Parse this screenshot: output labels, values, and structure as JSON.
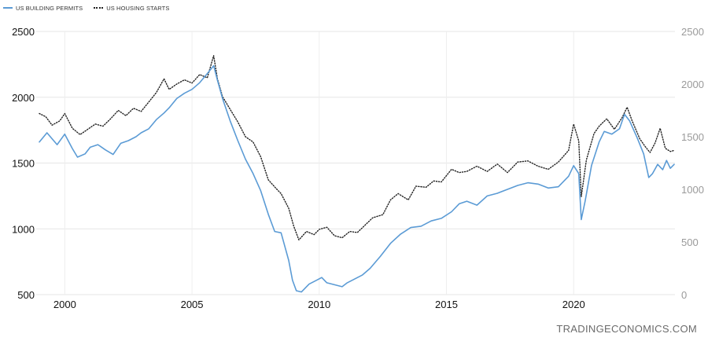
{
  "legend": [
    {
      "name": "US BUILDING PERMITS",
      "style": "solid",
      "color": "#5b9bd5"
    },
    {
      "name": "US HOUSING STARTS",
      "style": "dotted",
      "color": "#222222"
    }
  ],
  "watermark": "TRADINGECONOMICS.COM",
  "chart_data": {
    "type": "line",
    "title": "",
    "xlabel": "",
    "ylabel": "",
    "x_ticks": [
      "2000",
      "2005",
      "2010",
      "2015",
      "2020"
    ],
    "xlim": [
      1999.0,
      2023.95
    ],
    "y_left_ticks": [
      "500",
      "1000",
      "1500",
      "2000",
      "2500"
    ],
    "y_left_lim": [
      500,
      2500
    ],
    "y_right_ticks": [
      "0",
      "500",
      "1000",
      "1500",
      "2000",
      "2500"
    ],
    "y_right_lim": [
      0,
      2500
    ],
    "grid": true,
    "legend_position": "top-left",
    "series": [
      {
        "name": "US BUILDING PERMITS",
        "axis": "left",
        "color": "#5b9bd5",
        "style": "solid",
        "points": [
          [
            1999.0,
            1660
          ],
          [
            1999.3,
            1730
          ],
          [
            1999.7,
            1640
          ],
          [
            2000.0,
            1720
          ],
          [
            2000.3,
            1610
          ],
          [
            2000.5,
            1545
          ],
          [
            2000.8,
            1570
          ],
          [
            2001.0,
            1620
          ],
          [
            2001.3,
            1640
          ],
          [
            2001.6,
            1600
          ],
          [
            2001.9,
            1565
          ],
          [
            2002.2,
            1650
          ],
          [
            2002.5,
            1670
          ],
          [
            2002.8,
            1700
          ],
          [
            2003.0,
            1730
          ],
          [
            2003.3,
            1760
          ],
          [
            2003.6,
            1830
          ],
          [
            2003.9,
            1880
          ],
          [
            2004.1,
            1920
          ],
          [
            2004.4,
            1990
          ],
          [
            2004.7,
            2030
          ],
          [
            2005.0,
            2060
          ],
          [
            2005.3,
            2110
          ],
          [
            2005.6,
            2180
          ],
          [
            2005.85,
            2240
          ],
          [
            2006.0,
            2130
          ],
          [
            2006.2,
            1990
          ],
          [
            2006.5,
            1820
          ],
          [
            2006.8,
            1670
          ],
          [
            2007.1,
            1530
          ],
          [
            2007.4,
            1420
          ],
          [
            2007.7,
            1290
          ],
          [
            2008.0,
            1110
          ],
          [
            2008.25,
            980
          ],
          [
            2008.5,
            970
          ],
          [
            2008.8,
            760
          ],
          [
            2008.95,
            610
          ],
          [
            2009.1,
            530
          ],
          [
            2009.3,
            520
          ],
          [
            2009.6,
            580
          ],
          [
            2009.9,
            610
          ],
          [
            2010.1,
            630
          ],
          [
            2010.3,
            590
          ],
          [
            2010.6,
            575
          ],
          [
            2010.9,
            560
          ],
          [
            2011.1,
            590
          ],
          [
            2011.4,
            620
          ],
          [
            2011.7,
            650
          ],
          [
            2012.0,
            700
          ],
          [
            2012.4,
            790
          ],
          [
            2012.8,
            890
          ],
          [
            2013.2,
            960
          ],
          [
            2013.6,
            1010
          ],
          [
            2014.0,
            1020
          ],
          [
            2014.4,
            1060
          ],
          [
            2014.8,
            1080
          ],
          [
            2015.2,
            1130
          ],
          [
            2015.5,
            1190
          ],
          [
            2015.8,
            1210
          ],
          [
            2016.2,
            1180
          ],
          [
            2016.6,
            1250
          ],
          [
            2017.0,
            1270
          ],
          [
            2017.4,
            1300
          ],
          [
            2017.8,
            1330
          ],
          [
            2018.2,
            1350
          ],
          [
            2018.6,
            1340
          ],
          [
            2019.0,
            1310
          ],
          [
            2019.4,
            1320
          ],
          [
            2019.8,
            1400
          ],
          [
            2020.0,
            1480
          ],
          [
            2020.2,
            1420
          ],
          [
            2020.3,
            1070
          ],
          [
            2020.45,
            1210
          ],
          [
            2020.7,
            1480
          ],
          [
            2021.0,
            1660
          ],
          [
            2021.2,
            1740
          ],
          [
            2021.5,
            1720
          ],
          [
            2021.8,
            1760
          ],
          [
            2022.0,
            1870
          ],
          [
            2022.2,
            1820
          ],
          [
            2022.5,
            1690
          ],
          [
            2022.75,
            1570
          ],
          [
            2022.95,
            1390
          ],
          [
            2023.1,
            1420
          ],
          [
            2023.3,
            1490
          ],
          [
            2023.5,
            1450
          ],
          [
            2023.65,
            1520
          ],
          [
            2023.8,
            1460
          ],
          [
            2023.95,
            1490
          ]
        ]
      },
      {
        "name": "US HOUSING STARTS",
        "axis": "right",
        "color": "#222222",
        "style": "dotted",
        "points": [
          [
            1999.0,
            1720
          ],
          [
            1999.25,
            1690
          ],
          [
            1999.5,
            1610
          ],
          [
            1999.8,
            1650
          ],
          [
            2000.0,
            1720
          ],
          [
            2000.3,
            1580
          ],
          [
            2000.6,
            1520
          ],
          [
            2000.9,
            1570
          ],
          [
            2001.2,
            1620
          ],
          [
            2001.5,
            1600
          ],
          [
            2001.8,
            1670
          ],
          [
            2002.1,
            1750
          ],
          [
            2002.4,
            1700
          ],
          [
            2002.7,
            1770
          ],
          [
            2003.0,
            1740
          ],
          [
            2003.3,
            1830
          ],
          [
            2003.6,
            1920
          ],
          [
            2003.9,
            2050
          ],
          [
            2004.1,
            1950
          ],
          [
            2004.4,
            2000
          ],
          [
            2004.7,
            2040
          ],
          [
            2005.0,
            2010
          ],
          [
            2005.3,
            2090
          ],
          [
            2005.6,
            2060
          ],
          [
            2005.85,
            2270
          ],
          [
            2006.0,
            2050
          ],
          [
            2006.2,
            1880
          ],
          [
            2006.5,
            1760
          ],
          [
            2006.8,
            1640
          ],
          [
            2007.1,
            1500
          ],
          [
            2007.4,
            1450
          ],
          [
            2007.7,
            1310
          ],
          [
            2008.0,
            1090
          ],
          [
            2008.3,
            1010
          ],
          [
            2008.5,
            960
          ],
          [
            2008.8,
            820
          ],
          [
            2009.0,
            650
          ],
          [
            2009.2,
            520
          ],
          [
            2009.5,
            600
          ],
          [
            2009.8,
            570
          ],
          [
            2010.0,
            620
          ],
          [
            2010.3,
            640
          ],
          [
            2010.6,
            560
          ],
          [
            2010.9,
            540
          ],
          [
            2011.2,
            600
          ],
          [
            2011.5,
            590
          ],
          [
            2011.8,
            660
          ],
          [
            2012.1,
            730
          ],
          [
            2012.5,
            760
          ],
          [
            2012.8,
            900
          ],
          [
            2013.1,
            960
          ],
          [
            2013.5,
            900
          ],
          [
            2013.8,
            1030
          ],
          [
            2014.2,
            1020
          ],
          [
            2014.5,
            1080
          ],
          [
            2014.8,
            1070
          ],
          [
            2015.2,
            1190
          ],
          [
            2015.5,
            1160
          ],
          [
            2015.8,
            1170
          ],
          [
            2016.2,
            1220
          ],
          [
            2016.6,
            1170
          ],
          [
            2017.0,
            1240
          ],
          [
            2017.4,
            1160
          ],
          [
            2017.8,
            1260
          ],
          [
            2018.2,
            1270
          ],
          [
            2018.6,
            1220
          ],
          [
            2019.0,
            1190
          ],
          [
            2019.4,
            1260
          ],
          [
            2019.8,
            1370
          ],
          [
            2020.0,
            1620
          ],
          [
            2020.2,
            1460
          ],
          [
            2020.3,
            930
          ],
          [
            2020.5,
            1280
          ],
          [
            2020.8,
            1530
          ],
          [
            2021.0,
            1600
          ],
          [
            2021.3,
            1670
          ],
          [
            2021.6,
            1570
          ],
          [
            2021.9,
            1680
          ],
          [
            2022.1,
            1780
          ],
          [
            2022.3,
            1650
          ],
          [
            2022.6,
            1480
          ],
          [
            2022.8,
            1410
          ],
          [
            2023.0,
            1350
          ],
          [
            2023.2,
            1440
          ],
          [
            2023.4,
            1580
          ],
          [
            2023.6,
            1390
          ],
          [
            2023.8,
            1360
          ],
          [
            2023.95,
            1370
          ]
        ]
      }
    ]
  }
}
